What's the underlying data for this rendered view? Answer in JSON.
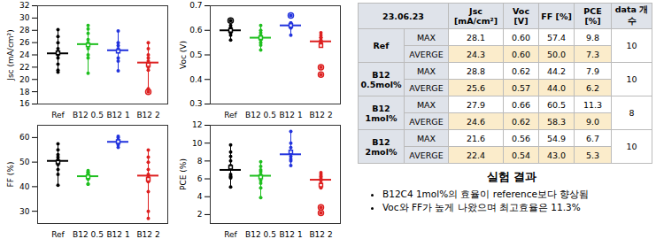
{
  "chart_data": [
    {
      "type": "box",
      "y_label": "Jsc (mA/cm²)",
      "categories": [
        "Ref",
        "B12 0.5",
        "B12 1",
        "B12 2"
      ],
      "colors": [
        "#000000",
        "#1fbf1f",
        "#2233dd",
        "#dd2020"
      ],
      "points": [
        [
          28.1,
          27,
          26,
          25,
          24.5,
          24,
          23.5,
          22.5,
          21.5,
          21.2
        ],
        [
          28.8,
          28.2,
          27.5,
          26.5,
          26,
          25.5,
          25,
          24,
          23.5,
          21
        ],
        [
          27.9,
          26,
          25.5,
          25,
          24.5,
          23.5,
          23,
          21.4
        ],
        [
          26,
          25,
          24,
          23.5,
          23,
          22.5,
          22,
          21.5,
          18.5,
          18
        ]
      ],
      "ylim": [
        16,
        32
      ],
      "yticks": [
        16,
        18,
        20,
        22,
        24,
        26,
        28,
        30,
        32
      ]
    },
    {
      "type": "box",
      "y_label": "Voc (V)",
      "categories": [
        "Ref",
        "B12 0.5",
        "B12 1",
        "B12 2"
      ],
      "colors": [
        "#000000",
        "#1fbf1f",
        "#2233dd",
        "#dd2020"
      ],
      "points": [
        [
          0.64,
          0.62,
          0.61,
          0.61,
          0.6,
          0.6,
          0.59,
          0.59,
          0.58,
          0.56
        ],
        [
          0.62,
          0.6,
          0.59,
          0.58,
          0.57,
          0.57,
          0.56,
          0.55,
          0.54,
          0.52
        ],
        [
          0.66,
          0.63,
          0.63,
          0.62,
          0.62,
          0.61,
          0.61,
          0.58
        ],
        [
          0.59,
          0.58,
          0.57,
          0.57,
          0.56,
          0.55,
          0.55,
          0.54,
          0.45,
          0.42
        ]
      ],
      "ylim": [
        0.3,
        0.7
      ],
      "yticks": [
        0.3,
        0.4,
        0.5,
        0.6,
        0.7
      ]
    },
    {
      "type": "box",
      "y_label": "FF (%)",
      "categories": [
        "Ref",
        "B12 0.5",
        "B12 1",
        "B12 2"
      ],
      "colors": [
        "#000000",
        "#1fbf1f",
        "#2233dd",
        "#dd2020"
      ],
      "points": [
        [
          57.4,
          55,
          53,
          52,
          51,
          50,
          49,
          47,
          45,
          40.6
        ],
        [
          46.5,
          46,
          45.5,
          45,
          44.5,
          44,
          43.5,
          43,
          41,
          41
        ],
        [
          60.5,
          60,
          59,
          58.5,
          58,
          57.5,
          57,
          56
        ],
        [
          54.9,
          52,
          50,
          47,
          45,
          44,
          42,
          38,
          30,
          27.1
        ]
      ],
      "ylim": [
        25,
        65
      ],
      "yticks": [
        30,
        40,
        50,
        60
      ]
    },
    {
      "type": "box",
      "y_label": "PCE (%)",
      "categories": [
        "Ref",
        "B12 0.5",
        "B12 1",
        "B12 2"
      ],
      "colors": [
        "#000000",
        "#1fbf1f",
        "#2233dd",
        "#dd2020"
      ],
      "points": [
        [
          9.8,
          9,
          8.5,
          8,
          7.5,
          6.5,
          6.3,
          6.2,
          6.1,
          5.1
        ],
        [
          7.9,
          7.4,
          7,
          6.8,
          6.5,
          6.2,
          5.8,
          5.5,
          5,
          3.9
        ],
        [
          11.3,
          10,
          9.5,
          9,
          8.5,
          8.2,
          8,
          7.5
        ],
        [
          6.7,
          6.5,
          6.3,
          6.2,
          6,
          5.8,
          5.5,
          5,
          2.8,
          2.2
        ]
      ],
      "ylim": [
        1,
        12
      ],
      "yticks": [
        2,
        4,
        6,
        8,
        10,
        12
      ]
    }
  ],
  "table": {
    "header": [
      "23.06.23",
      "Jsc [mA/cm²]",
      "Voc [V]",
      "FF [%]",
      "PCE [%]",
      "data 개수"
    ],
    "groups": [
      {
        "name": "Ref",
        "count": "10",
        "rows": [
          {
            "label": "MAX",
            "values": [
              "28.1",
              "0.60",
              "57.4",
              "9.8"
            ]
          },
          {
            "label": "AVERGE",
            "values": [
              "24.3",
              "0.60",
              "50.0",
              "7.3"
            ]
          }
        ]
      },
      {
        "name": "B12 0.5mol%",
        "count": "10",
        "rows": [
          {
            "label": "MAX",
            "values": [
              "28.8",
              "0.62",
              "44.2",
              "7.9"
            ]
          },
          {
            "label": "AVERGE",
            "values": [
              "25.6",
              "0.57",
              "44.0",
              "6.2"
            ]
          }
        ]
      },
      {
        "name": "B12 1mol%",
        "count": "8",
        "rows": [
          {
            "label": "MAX",
            "values": [
              "27.9",
              "0.66",
              "60.5",
              "11.3"
            ]
          },
          {
            "label": "AVERGE",
            "values": [
              "24.6",
              "0.62",
              "58.3",
              "9.0"
            ]
          }
        ]
      },
      {
        "name": "B12 2mol%",
        "count": "10",
        "rows": [
          {
            "label": "MAX",
            "values": [
              "21.6",
              "0.56",
              "54.9",
              "6.7"
            ]
          },
          {
            "label": "AVERGE",
            "values": [
              "22.4",
              "0.54",
              "43.0",
              "5.3"
            ]
          }
        ]
      }
    ]
  },
  "notes": {
    "title": "실험 결과",
    "items": [
      "B12C4 1mol%의 효율이 reference보다 향상됨",
      "Voc와 FF가 높게 나왔으며 최고효율은 11.3%"
    ]
  }
}
